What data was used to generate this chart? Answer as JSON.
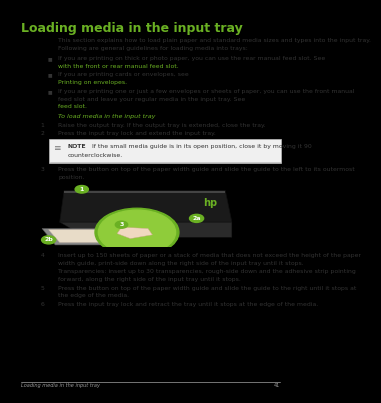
{
  "title": "Loading media in the input tray",
  "title_color": "#6ab023",
  "bg_color": "#ffffff",
  "page_bg": "#000000",
  "content_bg": "#ffffff",
  "body_color": "#333333",
  "link_color": "#6ab023",
  "footer_text": "Loading media in the input tray",
  "footer_page": "41",
  "intro_line1": "This section explains how to load plain paper and standard media sizes and types into the input tray.",
  "intro_line2": "Following are general guidelines for loading media into trays:",
  "section_heading": "To load media in the input tray",
  "steps": [
    "Raise the output tray. If the output tray is extended, close the tray.",
    "Press the input tray lock and extend the input tray.",
    "Press the button on top of the paper width guide and slide the guide to the left to its outermost",
    "position.",
    "Insert up to 150 sheets of paper or a stack of media that does not exceed the height of the paper",
    "width guide, print-side down along the right side of the input tray until it stops.",
    "Transparencies: insert up to 30 transparencies, rough-side down and the adhesive strip pointing",
    "forward, along the right side of the input tray until it stops.",
    "Press the button on top of the paper width guide and slide the guide to the right until it stops at",
    "the edge of the media.",
    "Press the input tray lock and retract the tray until it stops at the edge of the media."
  ],
  "note_line1": "NOTE   If the small media guide is in its open position, close it by moving it 90",
  "note_line2": "counterclockwise.",
  "font_size_title": 9.0,
  "font_size_body": 4.4,
  "font_size_footer": 3.6
}
